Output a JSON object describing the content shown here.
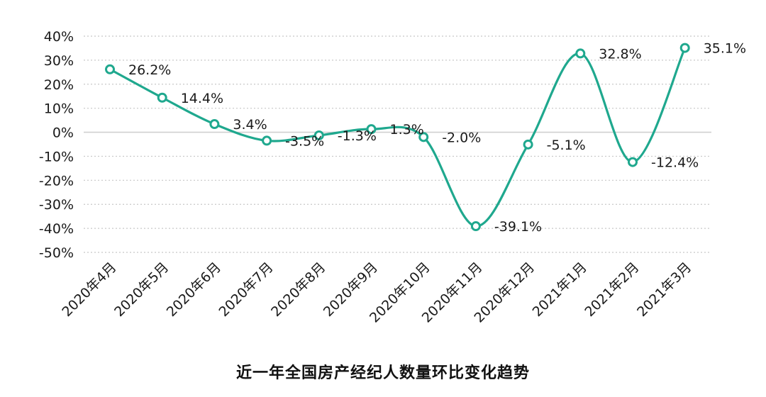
{
  "caption": "近一年全国房产经纪人数量环比变化趋势",
  "chart_data": {
    "type": "line",
    "categories": [
      "2020年4月",
      "2020年5月",
      "2020年6月",
      "2020年7月",
      "2020年8月",
      "2020年9月",
      "2020年10月",
      "2020年11月",
      "2020年12月",
      "2021年1月",
      "2021年2月",
      "2021年3月"
    ],
    "values": [
      26.2,
      14.4,
      3.4,
      -3.5,
      -1.3,
      1.3,
      -2.0,
      -39.1,
      -5.1,
      32.8,
      -12.4,
      35.1
    ],
    "data_labels": [
      "26.2%",
      "14.4%",
      "3.4%",
      "-3.5%",
      "-1.3%",
      "1.3%",
      "-2.0%",
      "-39.1%",
      "-5.1%",
      "32.8%",
      "-12.4%",
      "35.1%"
    ],
    "y_ticks": [
      "40%",
      "30%",
      "20%",
      "10%",
      "0%",
      "-10%",
      "-20%",
      "-30%",
      "-40%",
      "-50%"
    ],
    "ylim": [
      -50,
      40
    ],
    "grid": true,
    "line_color": "#1fa88e",
    "marker_fill": "#ffffff",
    "grid_color": "#c8c8c8",
    "smooth": true
  }
}
